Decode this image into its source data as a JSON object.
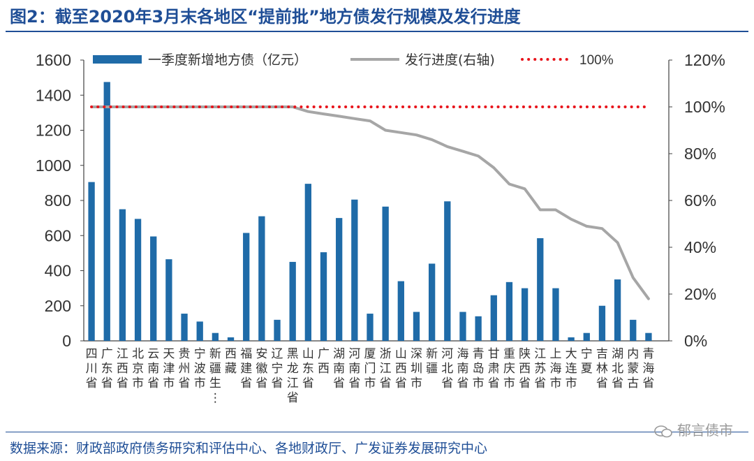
{
  "title": "图2：截至2020年3月末各地区“提前批”地方债发行规模及发行进度",
  "source": "数据来源：财政部政府债务研究和评估中心、各地财政厅、广发证券发展研究中心",
  "watermark": "郁言债市",
  "colors": {
    "title": "#1f4e96",
    "bar": "#1f6ba8",
    "line": "#a6a6a6",
    "reference": "#e8141b",
    "axis": "#404040"
  },
  "chart_data": {
    "type": "bar",
    "grid": false,
    "legend_position": "top",
    "categories": [
      "四川省",
      "广东省",
      "江西省",
      "北京市",
      "云南省",
      "天津市",
      "贵州省",
      "宁波市",
      "新疆生…",
      "西藏",
      "福建省",
      "安徽省",
      "辽宁省",
      "黑龙江省",
      "山东省",
      "广西",
      "湖南省",
      "河南省",
      "厦门市",
      "浙江省",
      "山西省",
      "深圳市",
      "新疆",
      "河北省",
      "海南省",
      "青岛市",
      "甘肃省",
      "重庆市",
      "陕西省",
      "江苏省",
      "上海市",
      "大连市",
      "宁夏",
      "吉林省",
      "湖北省",
      "内蒙古",
      "青海省"
    ],
    "series": [
      {
        "name": "一季度新增地方债（亿元）",
        "axis": "left",
        "kind": "bar",
        "values": [
          905,
          1475,
          750,
          695,
          595,
          465,
          155,
          110,
          45,
          20,
          615,
          710,
          120,
          450,
          895,
          505,
          700,
          805,
          155,
          765,
          340,
          165,
          440,
          795,
          165,
          140,
          260,
          335,
          300,
          585,
          300,
          20,
          45,
          200,
          350,
          120,
          45
        ]
      },
      {
        "name": "发行进度(右轴)",
        "axis": "right",
        "kind": "line",
        "values": [
          100,
          100,
          100,
          100,
          100,
          100,
          100,
          100,
          100,
          100,
          100,
          100,
          100,
          100,
          98,
          97,
          96,
          95,
          94,
          90,
          89,
          88,
          86,
          83,
          81,
          79,
          74,
          67,
          65,
          56,
          56,
          52,
          49,
          48,
          42,
          27,
          18
        ]
      },
      {
        "name": "100%",
        "axis": "right",
        "kind": "reference",
        "values": [
          100,
          100,
          100,
          100,
          100,
          100,
          100,
          100,
          100,
          100,
          100,
          100,
          100,
          100,
          100,
          100,
          100,
          100,
          100,
          100,
          100,
          100,
          100,
          100,
          100,
          100,
          100,
          100,
          100,
          100,
          100,
          100,
          100,
          100,
          100,
          100,
          100
        ]
      }
    ],
    "y_left": {
      "min": 0,
      "max": 1600,
      "ticks": [
        "0",
        "200",
        "400",
        "600",
        "800",
        "1000",
        "1200",
        "1400",
        "1600"
      ]
    },
    "y_right": {
      "min": 0,
      "max": 120,
      "ticks": [
        "0%",
        "20%",
        "40%",
        "60%",
        "80%",
        "100%",
        "120%"
      ]
    }
  }
}
